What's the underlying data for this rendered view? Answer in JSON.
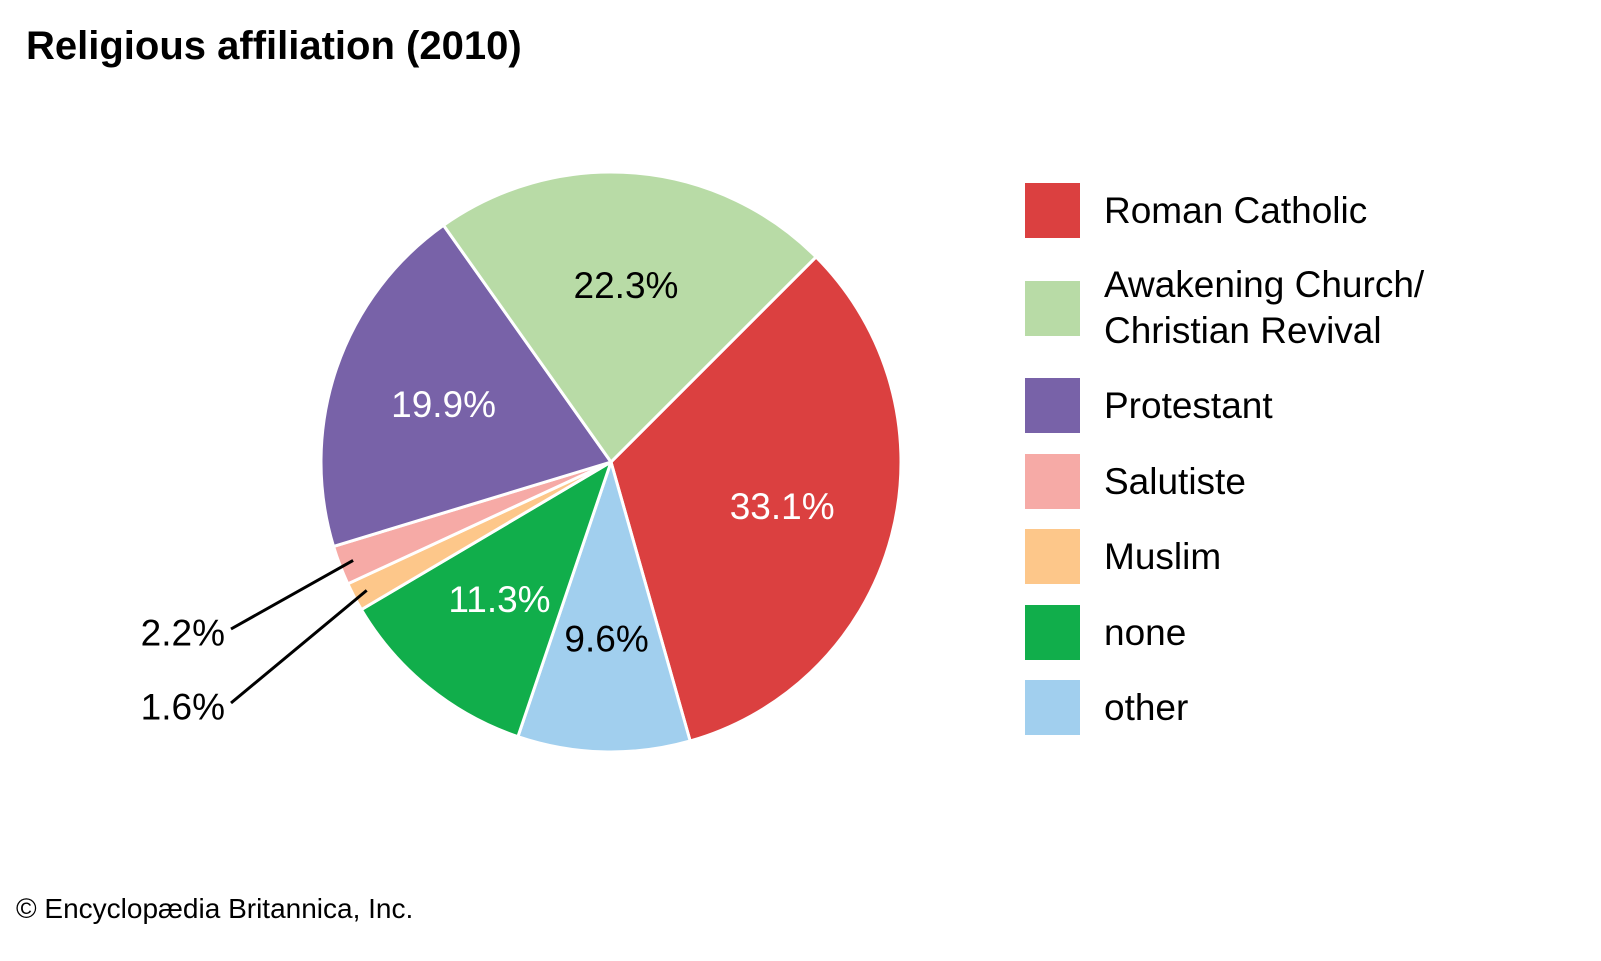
{
  "chart_data": {
    "type": "pie",
    "title": "Religious affiliation (2010)",
    "start_angle_deg": 45,
    "direction": "clockwise",
    "slices": [
      {
        "label": "Roman Catholic",
        "display_label": "Roman Catholic",
        "value": 33.1,
        "value_label": "33.1%",
        "color": "#db4040",
        "label_color": "#ffffff"
      },
      {
        "label": "other",
        "display_label": "other",
        "value": 9.6,
        "value_label": "9.6%",
        "color": "#a1cfee",
        "label_color": "#000000"
      },
      {
        "label": "none",
        "display_label": "none",
        "value": 11.3,
        "value_label": "11.3%",
        "color": "#11ae4b",
        "label_color": "#ffffff"
      },
      {
        "label": "Muslim",
        "display_label": "Muslim",
        "value": 1.6,
        "value_label": "1.6%",
        "color": "#fdc78a",
        "label_color": "#000000",
        "callout": true
      },
      {
        "label": "Salutiste",
        "display_label": "Salutiste",
        "value": 2.2,
        "value_label": "2.2%",
        "color": "#f6aaa6",
        "label_color": "#000000",
        "callout": true
      },
      {
        "label": "Protestant",
        "display_label": "Protestant",
        "value": 19.9,
        "value_label": "19.9%",
        "color": "#7862a8",
        "label_color": "#ffffff"
      },
      {
        "label": "Awakening Church/ Christian Revival",
        "display_label": "Awakening Church/\nChristian Revival",
        "value": 22.3,
        "value_label": "22.3%",
        "color": "#b8dba6",
        "label_color": "#000000"
      }
    ],
    "legend_order": [
      "Roman Catholic",
      "Awakening Church/ Christian Revival",
      "Protestant",
      "Salutiste",
      "Muslim",
      "none",
      "other"
    ],
    "legend_position": "right"
  },
  "footer": {
    "copyright": "© Encyclopædia Britannica, Inc."
  }
}
